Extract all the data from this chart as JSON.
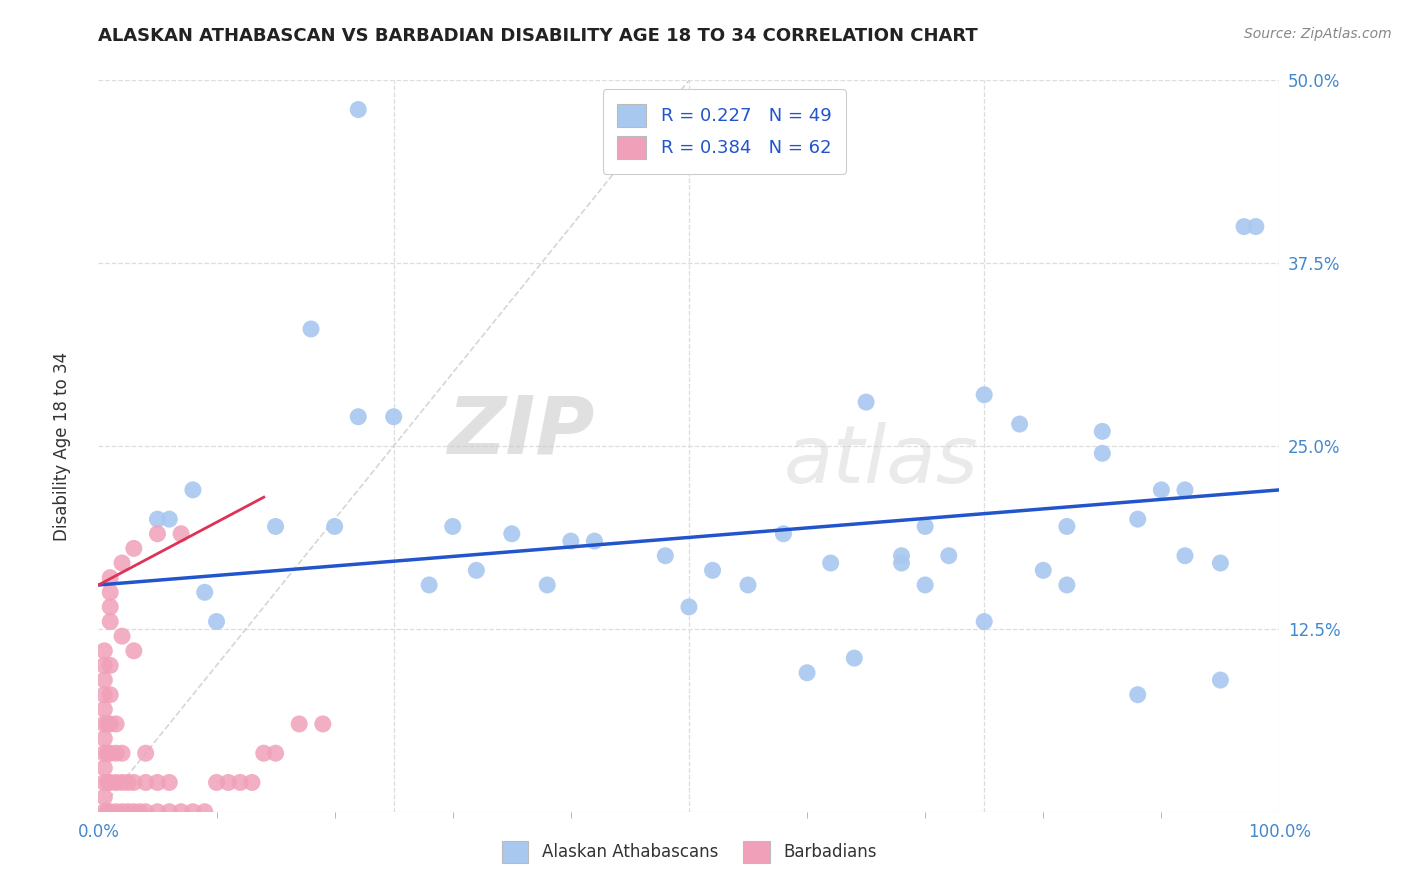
{
  "title": "ALASKAN ATHABASCAN VS BARBADIAN DISABILITY AGE 18 TO 34 CORRELATION CHART",
  "source": "Source: ZipAtlas.com",
  "ylabel": "Disability Age 18 to 34",
  "xlim": [
    0,
    1.0
  ],
  "ylim": [
    0,
    0.5
  ],
  "ytick_labels": [
    "",
    "12.5%",
    "25.0%",
    "37.5%",
    "50.0%"
  ],
  "ytick_values": [
    0.0,
    0.125,
    0.25,
    0.375,
    0.5
  ],
  "legend_r1": "R = 0.227",
  "legend_n1": "N = 49",
  "legend_r2": "R = 0.384",
  "legend_n2": "N = 62",
  "blue_color": "#A8C8F0",
  "pink_color": "#F0A0B8",
  "line_blue": "#2255CC",
  "line_pink": "#DD3355",
  "diag_color": "#CCCCCC",
  "legend_text_color": "#2255CC",
  "background_color": "#FFFFFF",
  "grid_color": "#DDDDDD",
  "watermark_zip": "ZIP",
  "watermark_atlas": "atlas",
  "blue_scatter_x": [
    0.22,
    0.18,
    0.22,
    0.08,
    0.06,
    0.05,
    0.09,
    0.1,
    0.25,
    0.2,
    0.3,
    0.35,
    0.4,
    0.48,
    0.52,
    0.58,
    0.62,
    0.65,
    0.68,
    0.7,
    0.72,
    0.75,
    0.78,
    0.8,
    0.82,
    0.85,
    0.88,
    0.9,
    0.92,
    0.95,
    0.98,
    0.32,
    0.38,
    0.42,
    0.15,
    0.28,
    0.55,
    0.6,
    0.64,
    0.68,
    0.75,
    0.82,
    0.88,
    0.92,
    0.95,
    0.5,
    0.7,
    0.85,
    0.97
  ],
  "blue_scatter_y": [
    0.48,
    0.33,
    0.27,
    0.22,
    0.2,
    0.2,
    0.15,
    0.13,
    0.27,
    0.195,
    0.195,
    0.19,
    0.185,
    0.175,
    0.165,
    0.19,
    0.17,
    0.28,
    0.175,
    0.195,
    0.175,
    0.285,
    0.265,
    0.165,
    0.155,
    0.26,
    0.2,
    0.22,
    0.175,
    0.17,
    0.4,
    0.165,
    0.155,
    0.185,
    0.195,
    0.155,
    0.155,
    0.095,
    0.105,
    0.17,
    0.13,
    0.195,
    0.08,
    0.22,
    0.09,
    0.14,
    0.155,
    0.245,
    0.4
  ],
  "pink_scatter_x": [
    0.005,
    0.005,
    0.005,
    0.005,
    0.005,
    0.005,
    0.005,
    0.005,
    0.005,
    0.005,
    0.005,
    0.005,
    0.008,
    0.008,
    0.008,
    0.008,
    0.01,
    0.01,
    0.01,
    0.01,
    0.01,
    0.01,
    0.015,
    0.015,
    0.015,
    0.015,
    0.02,
    0.02,
    0.02,
    0.025,
    0.025,
    0.03,
    0.03,
    0.035,
    0.04,
    0.04,
    0.04,
    0.05,
    0.05,
    0.06,
    0.06,
    0.07,
    0.08,
    0.09,
    0.1,
    0.11,
    0.12,
    0.13,
    0.14,
    0.15,
    0.17,
    0.19,
    0.05,
    0.07,
    0.03,
    0.02,
    0.01,
    0.01,
    0.01,
    0.01,
    0.02,
    0.03
  ],
  "pink_scatter_y": [
    0.0,
    0.01,
    0.02,
    0.03,
    0.04,
    0.05,
    0.06,
    0.07,
    0.08,
    0.09,
    0.1,
    0.11,
    0.0,
    0.02,
    0.04,
    0.06,
    0.0,
    0.02,
    0.04,
    0.06,
    0.08,
    0.1,
    0.0,
    0.02,
    0.04,
    0.06,
    0.0,
    0.02,
    0.04,
    0.0,
    0.02,
    0.0,
    0.02,
    0.0,
    0.0,
    0.02,
    0.04,
    0.0,
    0.02,
    0.0,
    0.02,
    0.0,
    0.0,
    0.0,
    0.02,
    0.02,
    0.02,
    0.02,
    0.04,
    0.04,
    0.06,
    0.06,
    0.19,
    0.19,
    0.18,
    0.17,
    0.16,
    0.15,
    0.14,
    0.13,
    0.12,
    0.11
  ],
  "blue_trendline_x": [
    0.0,
    1.0
  ],
  "blue_trendline_y": [
    0.155,
    0.22
  ],
  "pink_trendline_x": [
    0.0,
    0.14
  ],
  "pink_trendline_y": [
    0.155,
    0.215
  ],
  "diag_line_x": [
    0.0,
    0.5
  ],
  "diag_line_y": [
    0.0,
    0.5
  ]
}
